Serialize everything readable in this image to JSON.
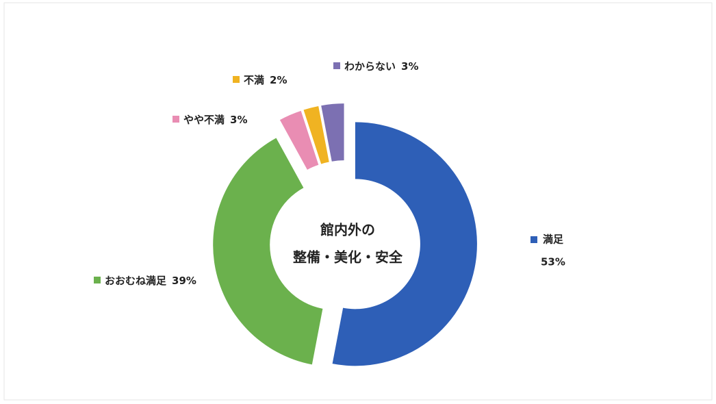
{
  "chart_data": {
    "type": "donut",
    "center_text": [
      "館内外の",
      "整備・美化・安全"
    ],
    "categories": [
      "満足",
      "おおむね満足",
      "やや不満",
      "不満",
      "わからない"
    ],
    "values": [
      53,
      39,
      3,
      2,
      3
    ],
    "value_labels": [
      "53%",
      "39%",
      "3%",
      "2%",
      "3%"
    ],
    "colors": [
      "#2e5fb7",
      "#6bb14d",
      "#e98db3",
      "#f0b322",
      "#7c70b2"
    ]
  }
}
